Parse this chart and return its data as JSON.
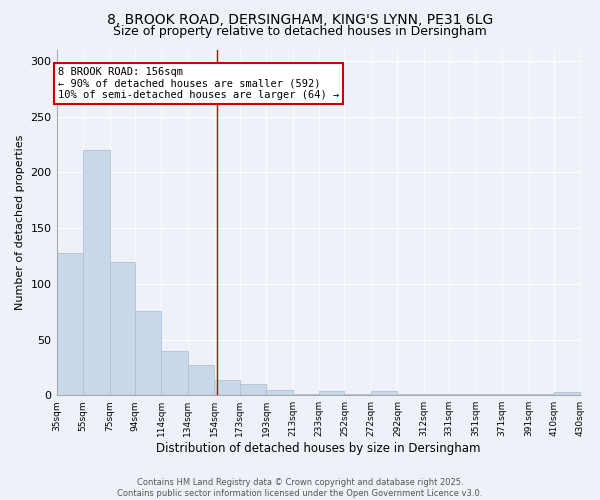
{
  "title1": "8, BROOK ROAD, DERSINGHAM, KING'S LYNN, PE31 6LG",
  "title2": "Size of property relative to detached houses in Dersingham",
  "xlabel": "Distribution of detached houses by size in Dersingham",
  "ylabel": "Number of detached properties",
  "bar_edges": [
    35,
    55,
    75,
    94,
    114,
    134,
    154,
    173,
    193,
    213,
    233,
    252,
    272,
    292,
    312,
    331,
    351,
    371,
    391,
    410,
    430
  ],
  "bar_heights": [
    128,
    220,
    120,
    76,
    40,
    27,
    14,
    10,
    5,
    1,
    4,
    1,
    4,
    1,
    1,
    1,
    1,
    1,
    1,
    3
  ],
  "bar_color": "#c8d8e8",
  "bar_edgecolor": "#aabbcc",
  "vline_x": 156,
  "vline_color": "#cc0000",
  "annotation_text": "8 BROOK ROAD: 156sqm\n← 90% of detached houses are smaller (592)\n10% of semi-detached houses are larger (64) →",
  "annotation_box_color": "#ffffff",
  "annotation_box_edgecolor": "#cc0000",
  "ylim": [
    0,
    310
  ],
  "yticks": [
    0,
    50,
    100,
    150,
    200,
    250,
    300
  ],
  "tick_labels": [
    "35sqm",
    "55sqm",
    "75sqm",
    "94sqm",
    "114sqm",
    "134sqm",
    "154sqm",
    "173sqm",
    "193sqm",
    "213sqm",
    "233sqm",
    "252sqm",
    "272sqm",
    "292sqm",
    "312sqm",
    "331sqm",
    "351sqm",
    "371sqm",
    "391sqm",
    "410sqm",
    "430sqm"
  ],
  "bg_color": "#eef2f8",
  "footer_text": "Contains HM Land Registry data © Crown copyright and database right 2025.\nContains public sector information licensed under the Open Government Licence v3.0.",
  "title_fontsize": 10,
  "title2_fontsize": 9
}
